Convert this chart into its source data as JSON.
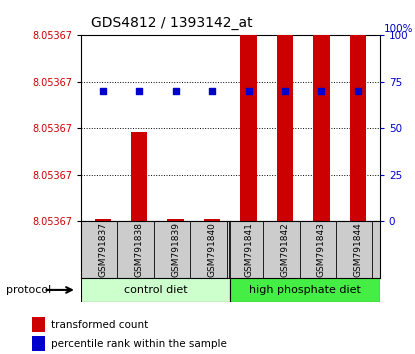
{
  "title": "GDS4812 / 1393142_at",
  "samples": [
    "GSM791837",
    "GSM791838",
    "GSM791839",
    "GSM791840",
    "GSM791841",
    "GSM791842",
    "GSM791843",
    "GSM791844"
  ],
  "groups": [
    "control diet",
    "high phosphate diet"
  ],
  "group_sizes": [
    4,
    4
  ],
  "bar_values": [
    1,
    48,
    1,
    1,
    100,
    100,
    100,
    100
  ],
  "pct_values": [
    70,
    70,
    70,
    70,
    70,
    70,
    70,
    70
  ],
  "yticks_right": [
    0,
    25,
    50,
    75,
    100
  ],
  "bar_color": "#cc0000",
  "dot_color": "#0000cc",
  "group_color_1": "#ccffcc",
  "group_color_2": "#44ee44",
  "bg_color": "#ffffff",
  "label_bg": "#cccccc",
  "protocol_label": "protocol",
  "legend_bar": "transformed count",
  "legend_dot": "percentile rank within the sample",
  "left_ytick_label": "8.05367",
  "right_top_label": "100%"
}
